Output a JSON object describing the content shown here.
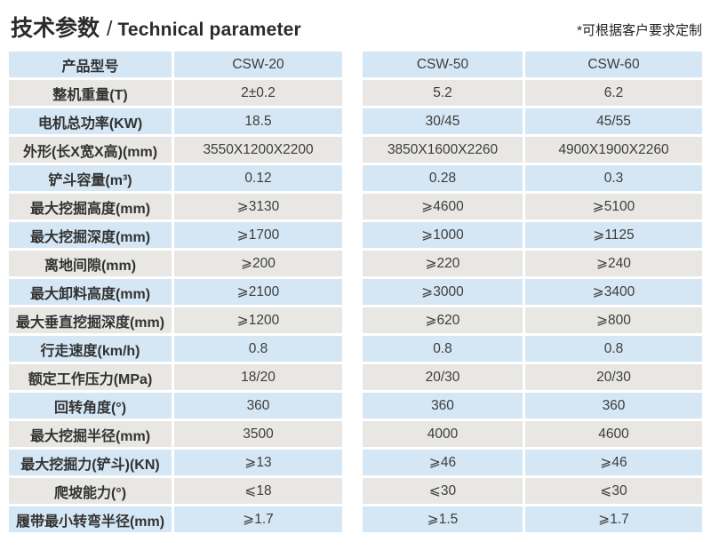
{
  "header": {
    "title_zh": "技术参数",
    "title_sep": "/",
    "title_en": "Technical parameter",
    "note": "*可根据客户要求定制"
  },
  "table": {
    "column_keys": [
      "label",
      "csw20",
      "csw50",
      "csw60"
    ],
    "rows": [
      {
        "label": "产品型号",
        "csw20": "CSW-20",
        "csw50": "CSW-50",
        "csw60": "CSW-60"
      },
      {
        "label": "整机重量(T)",
        "csw20": "2±0.2",
        "csw50": "5.2",
        "csw60": "6.2"
      },
      {
        "label": "电机总功率(KW)",
        "csw20": "18.5",
        "csw50": "30/45",
        "csw60": "45/55"
      },
      {
        "label": "外形(长X宽X高)(mm)",
        "csw20": "3550X1200X2200",
        "csw50": "3850X1600X2260",
        "csw60": "4900X1900X2260"
      },
      {
        "label": "铲斗容量(m³)",
        "csw20": "0.12",
        "csw50": "0.28",
        "csw60": "0.3"
      },
      {
        "label": "最大挖掘高度(mm)",
        "csw20": "⩾3130",
        "csw50": "⩾4600",
        "csw60": "⩾5100"
      },
      {
        "label": "最大挖掘深度(mm)",
        "csw20": "⩾1700",
        "csw50": "⩾1000",
        "csw60": "⩾1125"
      },
      {
        "label": "离地间隙(mm)",
        "csw20": "⩾200",
        "csw50": "⩾220",
        "csw60": "⩾240"
      },
      {
        "label": "最大卸料高度(mm)",
        "csw20": "⩾2100",
        "csw50": "⩾3000",
        "csw60": "⩾3400"
      },
      {
        "label": "最大垂直挖掘深度(mm)",
        "csw20": "⩾1200",
        "csw50": "⩾620",
        "csw60": "⩾800"
      },
      {
        "label": "行走速度(km/h)",
        "csw20": "0.8",
        "csw50": "0.8",
        "csw60": "0.8"
      },
      {
        "label": "额定工作压力(MPa)",
        "csw20": "18/20",
        "csw50": "20/30",
        "csw60": "20/30"
      },
      {
        "label": "回转角度(°)",
        "csw20": "360",
        "csw50": "360",
        "csw60": "360"
      },
      {
        "label": "最大挖掘半径(mm)",
        "csw20": "3500",
        "csw50": "4000",
        "csw60": "4600"
      },
      {
        "label": "最大挖掘力(铲斗)(KN)",
        "csw20": "⩾13",
        "csw50": "⩾46",
        "csw60": "⩾46"
      },
      {
        "label": "爬坡能力(°)",
        "csw20": "⩽18",
        "csw50": "⩽30",
        "csw60": "⩽30"
      },
      {
        "label": "履带最小转弯半径(mm)",
        "csw20": "⩾1.7",
        "csw50": "⩾1.5",
        "csw60": "⩾1.7"
      }
    ]
  },
  "colors": {
    "row_blue": "#d5e7f4",
    "row_gray": "#e8e7e4",
    "title_text": "#2b2b2b",
    "cell_text": "#3d3d3d"
  }
}
